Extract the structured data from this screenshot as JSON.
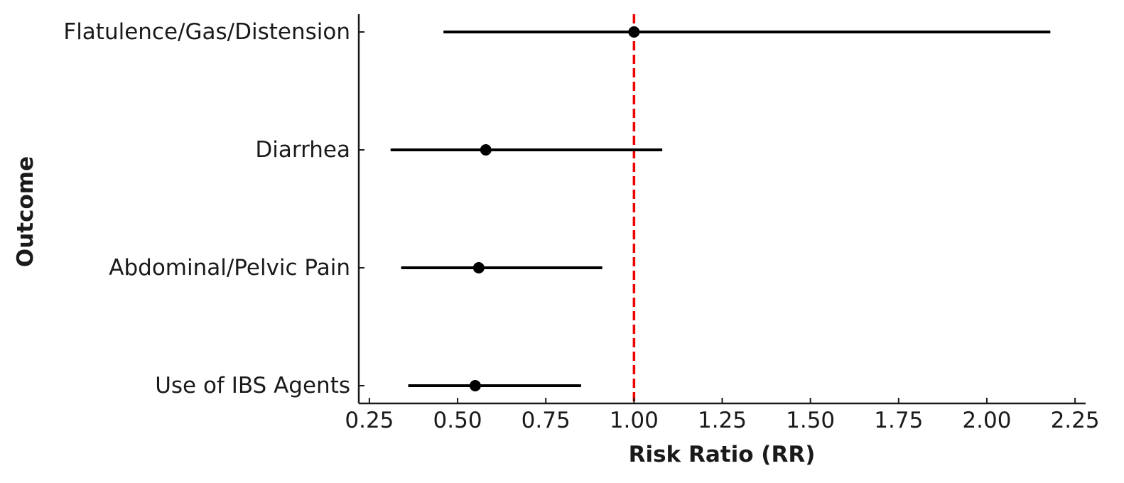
{
  "chart_data": {
    "type": "forest",
    "title": "",
    "xlabel": "Risk Ratio (RR)",
    "ylabel": "Outcome",
    "xlim": [
      0.22,
      2.28
    ],
    "xticks": [
      "0.25",
      "0.50",
      "0.75",
      "1.00",
      "1.25",
      "1.50",
      "1.75",
      "2.00",
      "2.25"
    ],
    "xtick_values": [
      0.25,
      0.5,
      0.75,
      1.0,
      1.25,
      1.5,
      1.75,
      2.0,
      2.25
    ],
    "reference_line": {
      "x": 1.0,
      "style": "dashed",
      "color": "#ee0000"
    },
    "grid": false,
    "marker_color": "#000000",
    "rows": [
      {
        "label": "Flatulence/Gas/Distension",
        "rr": 1.0,
        "ci_low": 0.46,
        "ci_high": 2.18
      },
      {
        "label": "Diarrhea",
        "rr": 0.58,
        "ci_low": 0.31,
        "ci_high": 1.08
      },
      {
        "label": "Abdominal/Pelvic Pain",
        "rr": 0.56,
        "ci_low": 0.34,
        "ci_high": 0.91
      },
      {
        "label": "Use of IBS Agents",
        "rr": 0.55,
        "ci_low": 0.36,
        "ci_high": 0.85
      }
    ]
  }
}
